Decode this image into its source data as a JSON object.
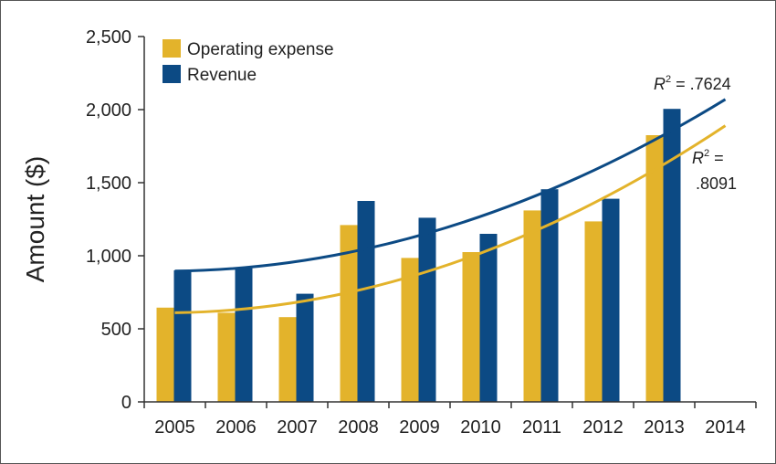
{
  "chart_data": {
    "type": "bar",
    "title": "",
    "xlabel": "",
    "ylabel": "Amount ($)",
    "ylim": [
      0,
      2500
    ],
    "yticks": [
      0,
      500,
      1000,
      1500,
      2000,
      2500
    ],
    "ytick_labels": [
      "0",
      "500",
      "1,000",
      "1,500",
      "2,000",
      "2,500"
    ],
    "categories": [
      "2005",
      "2006",
      "2007",
      "2008",
      "2009",
      "2010",
      "2011",
      "2012",
      "2013",
      "2014"
    ],
    "series": [
      {
        "name": "Operating expense",
        "color": "#E3B32B",
        "values": [
          645,
          610,
          580,
          1210,
          985,
          1025,
          1310,
          1235,
          1825,
          null
        ],
        "trendline": {
          "type": "quadratic",
          "r2_label": ".8091",
          "start": 610,
          "end": 1890
        }
      },
      {
        "name": "Revenue",
        "color": "#0C4A84",
        "values": [
          900,
          915,
          740,
          1375,
          1260,
          1150,
          1455,
          1390,
          2005,
          null
        ],
        "trendline": {
          "type": "quadratic",
          "r2_label": ".7624",
          "start": 895,
          "end": 2070
        }
      }
    ],
    "legend_position": "top-left",
    "grid": false,
    "annotations": [
      {
        "text_prefix": "R",
        "superscript": "2",
        "text": " = .7624",
        "series": "Revenue"
      },
      {
        "text_prefix": "R",
        "superscript": "2",
        "text_line1": " =",
        "text_line2": ".8091",
        "series": "Operating expense"
      }
    ]
  }
}
